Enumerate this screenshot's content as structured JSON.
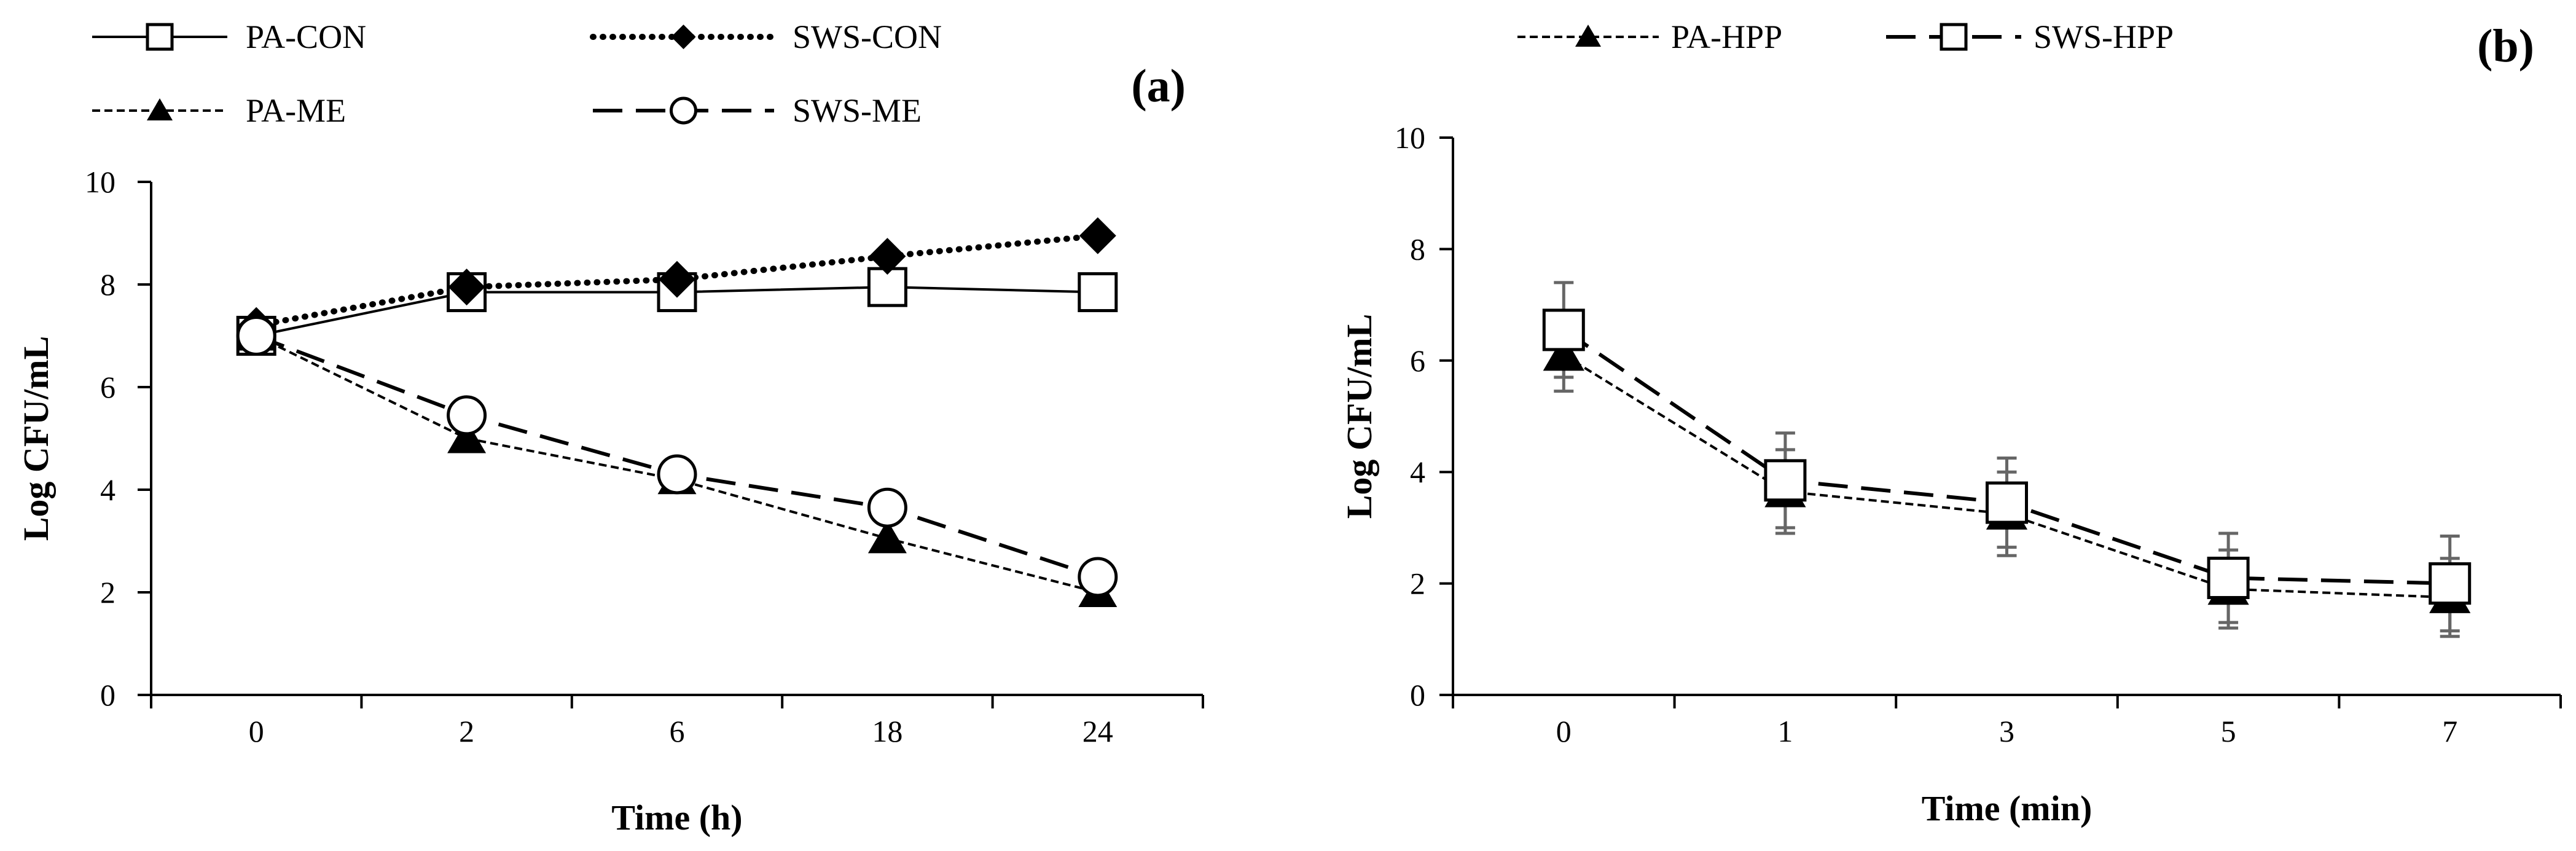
{
  "chart_data": [
    {
      "type": "line",
      "panel_label": "(a)",
      "title": "",
      "xlabel": "Time (h)",
      "ylabel": "Log CFU/mL",
      "categories": [
        "0",
        "2",
        "6",
        "18",
        "24"
      ],
      "ylim": [
        0,
        10
      ],
      "yticks": [
        "0",
        "2",
        "4",
        "6",
        "8",
        "10"
      ],
      "grid": false,
      "legend_position": "top",
      "series": [
        {
          "name": "PA-CON",
          "values": [
            7.0,
            7.85,
            7.85,
            7.95,
            7.85
          ],
          "marker": "square-open",
          "line": "solid"
        },
        {
          "name": "SWS-CON",
          "values": [
            7.2,
            7.95,
            8.1,
            8.55,
            8.95
          ],
          "marker": "diamond-filled",
          "line": "dotted"
        },
        {
          "name": "PA-ME",
          "values": [
            7.0,
            5.0,
            4.2,
            3.05,
            2.0
          ],
          "marker": "triangle-filled",
          "line": "short-dash"
        },
        {
          "name": "SWS-ME",
          "values": [
            7.0,
            5.45,
            4.3,
            3.65,
            2.3
          ],
          "marker": "circle-open",
          "line": "long-dash"
        }
      ]
    },
    {
      "type": "line",
      "panel_label": "(b)",
      "title": "",
      "xlabel": "Time (min)",
      "ylabel": "Log CFU/mL",
      "categories": [
        "0",
        "1",
        "3",
        "5",
        "7"
      ],
      "ylim": [
        0,
        10
      ],
      "yticks": [
        "0",
        "2",
        "4",
        "6",
        "8",
        "10"
      ],
      "grid": false,
      "legend_position": "top",
      "series": [
        {
          "name": "PA-HPP",
          "values": [
            6.1,
            3.65,
            3.25,
            1.9,
            1.75
          ],
          "errors": [
            0.65,
            0.75,
            0.75,
            0.7,
            0.7
          ],
          "marker": "triangle-filled",
          "line": "short-dash"
        },
        {
          "name": "SWS-HPP",
          "values": [
            6.55,
            3.85,
            3.45,
            2.1,
            2.0
          ],
          "errors": [
            0.85,
            0.85,
            0.8,
            0.8,
            0.85
          ],
          "marker": "square-open",
          "line": "long-dash"
        }
      ]
    }
  ]
}
